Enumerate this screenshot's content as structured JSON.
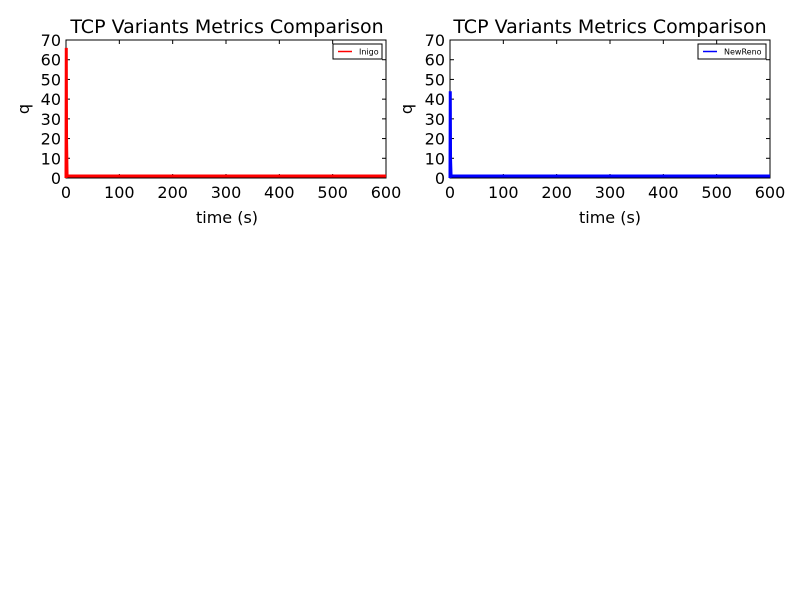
{
  "chart_data": [
    {
      "type": "line",
      "title": "TCP Variants Metrics Comparison",
      "xlabel": "time (s)",
      "ylabel": "q",
      "xlim": [
        0,
        600
      ],
      "ylim": [
        0,
        70
      ],
      "xticks": [
        0,
        100,
        200,
        300,
        400,
        500,
        600
      ],
      "yticks": [
        0,
        10,
        20,
        30,
        40,
        50,
        60,
        70
      ],
      "grid": false,
      "legend_position": "top-right",
      "series": [
        {
          "name": "Inigo",
          "color": "#ff0000",
          "x": [
            0,
            0.5,
            1,
            2,
            3,
            600
          ],
          "y": [
            0,
            66,
            20,
            1,
            1,
            1
          ]
        }
      ]
    },
    {
      "type": "line",
      "title": "TCP Variants Metrics Comparison",
      "xlabel": "time (s)",
      "ylabel": "q",
      "xlim": [
        0,
        600
      ],
      "ylim": [
        0,
        70
      ],
      "xticks": [
        0,
        100,
        200,
        300,
        400,
        500,
        600
      ],
      "yticks": [
        0,
        10,
        20,
        30,
        40,
        50,
        60,
        70
      ],
      "grid": false,
      "legend_position": "top-right",
      "series": [
        {
          "name": "NewReno",
          "color": "#0000ff",
          "x": [
            0,
            0.5,
            1,
            2,
            3,
            600
          ],
          "y": [
            0,
            44,
            10,
            1,
            1,
            1
          ]
        }
      ]
    }
  ]
}
